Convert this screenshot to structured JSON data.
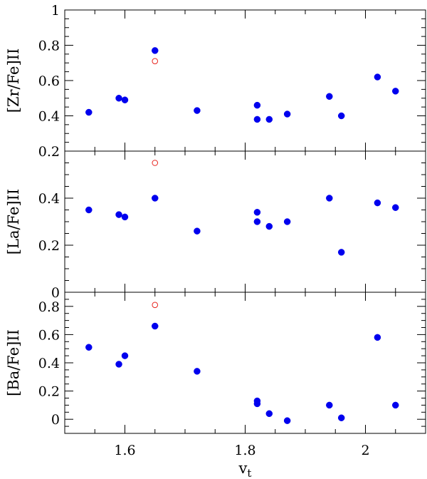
{
  "chart_data": [
    {
      "type": "scatter",
      "ylabel": "[Zr/Fe]II",
      "xlim": [
        1.5,
        2.1
      ],
      "ylim": [
        0.2,
        1.0
      ],
      "yticks": [
        0.2,
        0.4,
        0.6,
        0.8,
        1.0
      ],
      "ytick_labels": [
        "0.2",
        "0.4",
        "0.6",
        "0.8",
        "1"
      ],
      "series": [
        {
          "marker": "filled-circle",
          "color": "#0000ee",
          "x": [
            1.54,
            1.59,
            1.6,
            1.65,
            1.72,
            1.82,
            1.82,
            1.84,
            1.87,
            1.94,
            1.96,
            2.02,
            2.05
          ],
          "y": [
            0.42,
            0.5,
            0.49,
            0.77,
            0.43,
            0.46,
            0.38,
            0.38,
            0.41,
            0.51,
            0.4,
            0.62,
            0.54
          ]
        },
        {
          "marker": "open-circle",
          "color": "#e8251f",
          "x": [
            1.65
          ],
          "y": [
            0.71
          ]
        }
      ]
    },
    {
      "type": "scatter",
      "ylabel": "[La/Fe]II",
      "xlim": [
        1.5,
        2.1
      ],
      "ylim": [
        0.0,
        0.6
      ],
      "yticks": [
        0.0,
        0.2,
        0.4
      ],
      "ytick_labels": [
        "0",
        "0.2",
        "0.4"
      ],
      "series": [
        {
          "marker": "filled-circle",
          "color": "#0000ee",
          "x": [
            1.54,
            1.59,
            1.6,
            1.65,
            1.72,
            1.82,
            1.82,
            1.84,
            1.87,
            1.94,
            1.96,
            2.02,
            2.05
          ],
          "y": [
            0.35,
            0.33,
            0.32,
            0.4,
            0.26,
            0.34,
            0.3,
            0.28,
            0.3,
            0.4,
            0.17,
            0.38,
            0.36
          ]
        },
        {
          "marker": "open-circle",
          "color": "#e8251f",
          "x": [
            1.65
          ],
          "y": [
            0.55
          ]
        }
      ]
    },
    {
      "type": "scatter",
      "ylabel": "[Ba/Fe]II",
      "xlabel": "v_t",
      "xlim": [
        1.5,
        2.1
      ],
      "ylim": [
        -0.1,
        0.9
      ],
      "yticks": [
        0.0,
        0.2,
        0.4,
        0.6,
        0.8
      ],
      "ytick_labels": [
        "0",
        "0.2",
        "0.4",
        "0.6",
        "0.8"
      ],
      "xticks": [
        1.6,
        1.8,
        2.0
      ],
      "xtick_labels": [
        "1.6",
        "1.8",
        "2"
      ],
      "series": [
        {
          "marker": "filled-circle",
          "color": "#0000ee",
          "x": [
            1.54,
            1.59,
            1.6,
            1.65,
            1.72,
            1.82,
            1.82,
            1.84,
            1.87,
            1.94,
            1.96,
            2.02,
            2.05
          ],
          "y": [
            0.51,
            0.39,
            0.45,
            0.66,
            0.34,
            0.13,
            0.11,
            0.04,
            -0.01,
            0.1,
            0.01,
            0.58,
            0.1
          ]
        },
        {
          "marker": "open-circle",
          "color": "#e8251f",
          "x": [
            1.65
          ],
          "y": [
            0.81
          ]
        }
      ]
    }
  ]
}
